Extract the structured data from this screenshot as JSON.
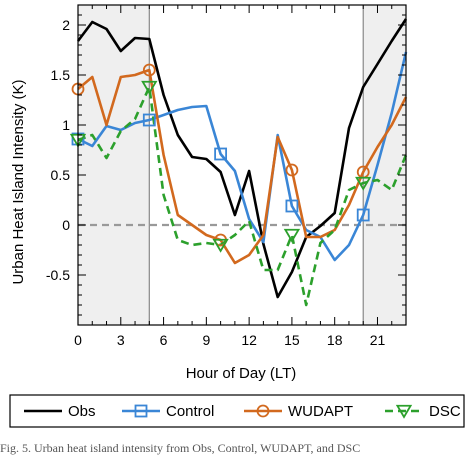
{
  "chart_data": {
    "type": "line",
    "xlabel": "Hour of Day (LT)",
    "ylabel": "Urban Heat Island Intensity (K)",
    "xlim": [
      0,
      23
    ],
    "ylim": [
      -1.0,
      2.2
    ],
    "xticks": [
      0,
      3,
      6,
      9,
      12,
      15,
      18,
      21
    ],
    "yticks": [
      -0.5,
      0,
      0.5,
      1,
      1.5,
      2
    ],
    "ytick_labels": [
      "-0.5",
      "0",
      "0.5",
      "1",
      "1.5",
      "2"
    ],
    "shaded_ranges": [
      [
        0,
        5
      ],
      [
        20,
        23
      ]
    ],
    "zero_line": true,
    "grid": false,
    "x": [
      0,
      1,
      2,
      3,
      4,
      5,
      6,
      7,
      8,
      9,
      10,
      11,
      12,
      13,
      14,
      15,
      16,
      17,
      18,
      19,
      20,
      21,
      22,
      23
    ],
    "series": [
      {
        "name": "Obs",
        "color": "#000000",
        "dashed": false,
        "marker": "none",
        "values": [
          1.84,
          2.03,
          1.96,
          1.74,
          1.87,
          1.86,
          1.3,
          0.9,
          0.68,
          0.66,
          0.53,
          0.1,
          0.54,
          -0.19,
          -0.72,
          -0.47,
          -0.12,
          -0.01,
          0.12,
          0.97,
          1.38,
          1.61,
          1.84,
          2.06
        ]
      },
      {
        "name": "Control",
        "color": "#3a86d6",
        "dashed": false,
        "marker": "square",
        "marker_hours": [
          0,
          5,
          10,
          15,
          20
        ],
        "values": [
          0.86,
          0.79,
          0.99,
          0.95,
          1.02,
          1.05,
          1.1,
          1.15,
          1.18,
          1.19,
          0.71,
          0.54,
          0.06,
          -0.17,
          0.9,
          0.19,
          -0.05,
          -0.12,
          -0.35,
          -0.2,
          0.1,
          0.6,
          1.12,
          1.73
        ]
      },
      {
        "name": "WUDAPT",
        "color": "#d2691e",
        "dashed": false,
        "marker": "circle",
        "marker_hours": [
          0,
          5,
          10,
          15,
          20
        ],
        "values": [
          1.36,
          1.48,
          1.0,
          1.48,
          1.5,
          1.55,
          0.7,
          0.1,
          0.0,
          -0.1,
          -0.15,
          -0.38,
          -0.3,
          -0.1,
          0.88,
          0.55,
          -0.12,
          -0.12,
          -0.05,
          0.2,
          0.53,
          0.78,
          1.0,
          1.28
        ]
      },
      {
        "name": "DSC",
        "color": "#2ca02c",
        "dashed": true,
        "marker": "triangle-down",
        "marker_hours": [
          0,
          5,
          10,
          15,
          20
        ],
        "values": [
          0.85,
          0.9,
          0.67,
          0.94,
          1.06,
          1.38,
          0.3,
          -0.15,
          -0.2,
          -0.18,
          -0.2,
          -0.1,
          0.04,
          -0.45,
          -0.45,
          -0.1,
          -0.8,
          -0.18,
          -0.05,
          0.35,
          0.42,
          0.45,
          0.35,
          0.7
        ]
      }
    ]
  },
  "caption": {
    "text": "Fig. 5. Urban heat island intensity from Obs, Control, WUDAPT, and DSC"
  }
}
